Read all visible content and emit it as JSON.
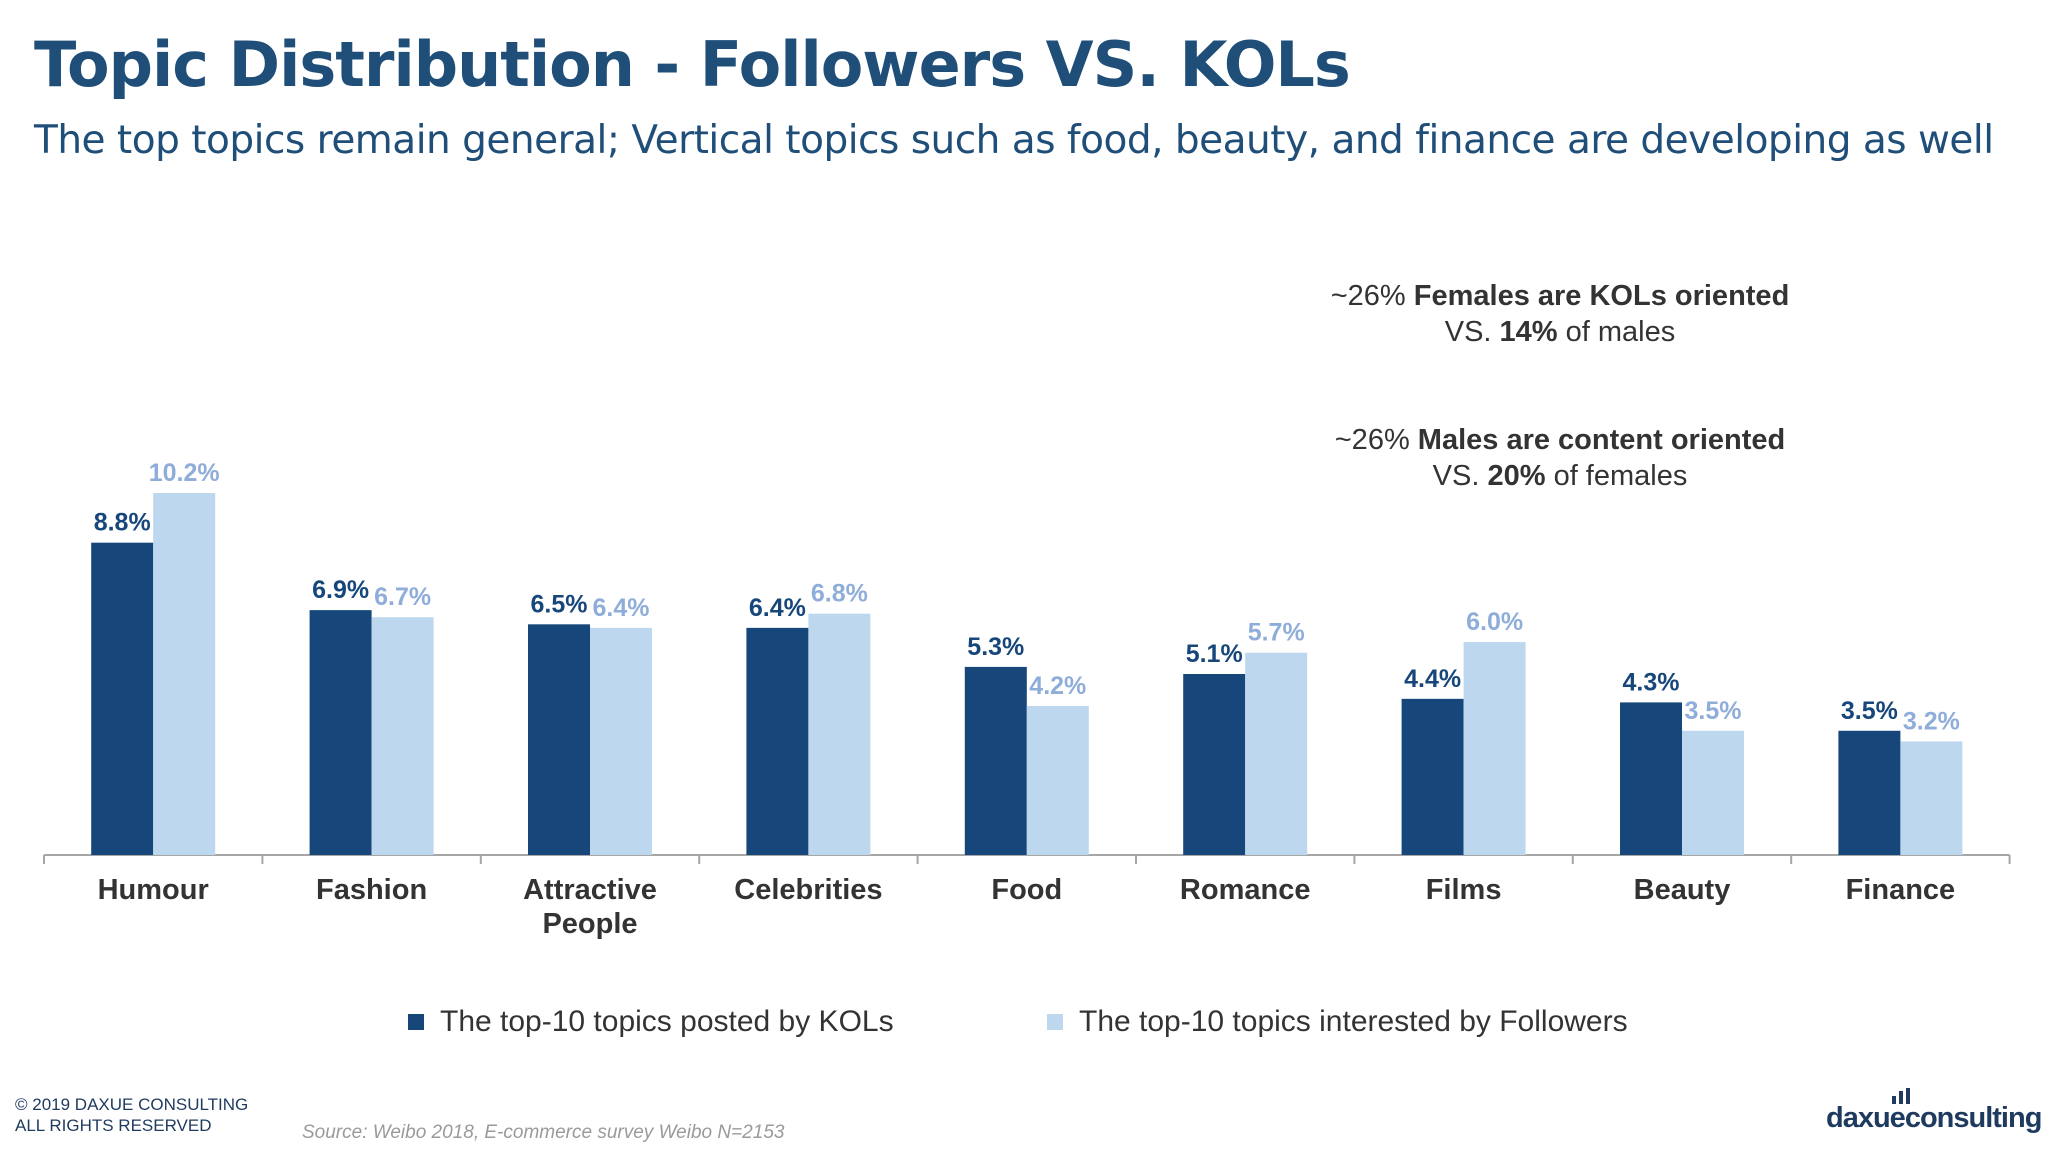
{
  "title": "Topic Distribution - Followers VS. KOLs",
  "subtitle": "The top topics remain general; Vertical topics such as food, beauty, and finance are developing as well",
  "annotations": [
    {
      "line1_pct": "~26%",
      "line1_text": "Females are KOLs oriented",
      "line2_prefix": "VS.",
      "line2_num": "14%",
      "line2_suffix": "of males"
    },
    {
      "line1_pct": "~26%",
      "line1_text": "Males are content oriented",
      "line2_prefix": "VS.",
      "line2_num": "20%",
      "line2_suffix": "of females"
    }
  ],
  "colors": {
    "kols": "#17477a",
    "followers": "#bdd7ee",
    "followers_label": "#8fadd9",
    "axis": "#a6a6a6",
    "category_text": "#333333"
  },
  "chart_data": {
    "type": "bar",
    "categories": [
      "Humour",
      "Fashion",
      "Attractive People",
      "Celebrities",
      "Food",
      "Romance",
      "Films",
      "Beauty",
      "Finance"
    ],
    "category_lines": [
      [
        "Humour"
      ],
      [
        "Fashion"
      ],
      [
        "Attractive",
        "People"
      ],
      [
        "Celebrities"
      ],
      [
        "Food"
      ],
      [
        "Romance"
      ],
      [
        "Films"
      ],
      [
        "Beauty"
      ],
      [
        "Finance"
      ]
    ],
    "series": [
      {
        "name": "The top-10 topics posted by KOLs",
        "values": [
          8.8,
          6.9,
          6.5,
          6.4,
          5.3,
          5.1,
          4.4,
          4.3,
          3.5
        ],
        "labels": [
          "8.8%",
          "6.9%",
          "6.5%",
          "6.4%",
          "5.3%",
          "5.1%",
          "4.4%",
          "4.3%",
          "3.5%"
        ]
      },
      {
        "name": "The top-10 topics interested by Followers",
        "values": [
          10.2,
          6.7,
          6.4,
          6.8,
          4.2,
          5.7,
          6.0,
          3.5,
          3.2
        ],
        "labels": [
          "10.2%",
          "6.7%",
          "6.4%",
          "6.8%",
          "4.2%",
          "5.7%",
          "6.0%",
          "3.5%",
          "3.2%"
        ]
      }
    ],
    "unit": "%",
    "ylim": [
      0,
      10.2
    ],
    "grid": false,
    "legend_position": "bottom"
  },
  "legend": [
    {
      "label": "The top-10 topics posted by KOLs"
    },
    {
      "label": "The top-10 topics interested by Followers"
    }
  ],
  "footer": {
    "copyright_line1": "© 2019 DAXUE CONSULTING",
    "copyright_line2": "ALL RIGHTS RESERVED",
    "source": "Source: Weibo 2018, E-commerce survey Weibo N=2153",
    "logo_text": "daxueconsulting"
  }
}
